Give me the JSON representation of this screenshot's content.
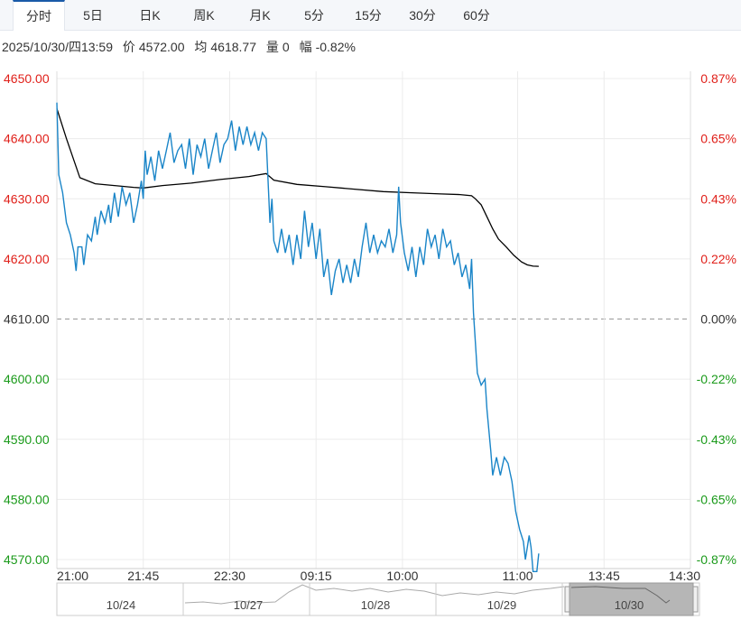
{
  "tabs": [
    {
      "label": "分时",
      "active": true
    },
    {
      "label": "5日",
      "active": false
    },
    {
      "label": "日K",
      "active": false
    },
    {
      "label": "周K",
      "active": false
    },
    {
      "label": "月K",
      "active": false
    },
    {
      "label": "5分",
      "active": false
    },
    {
      "label": "15分",
      "active": false
    },
    {
      "label": "30分",
      "active": false
    },
    {
      "label": "60分",
      "active": false
    }
  ],
  "info": {
    "datetime": "2025/10/30/四13:59",
    "price_label": "价",
    "price": "4572.00",
    "avg_label": "均",
    "avg": "4618.77",
    "volume_label": "量",
    "volume": "0",
    "change_label": "幅",
    "change": "-0.82%"
  },
  "colors": {
    "price_line": "#1a85c8",
    "avg_line": "#000000",
    "up": "#e0201a",
    "down": "#1a9a1a",
    "base": "#333333",
    "grid": "#ececec",
    "navigator_fill": "#dddddd"
  },
  "chart_data": {
    "type": "line",
    "ylim": [
      4569,
      4651
    ],
    "base_price": "4610.00",
    "y_ticks": [
      {
        "value": 4650,
        "label": "4650.00",
        "pct": "0.87%",
        "side": "up"
      },
      {
        "value": 4640,
        "label": "4640.00",
        "pct": "0.65%",
        "side": "up"
      },
      {
        "value": 4630,
        "label": "4630.00",
        "pct": "0.43%",
        "side": "up"
      },
      {
        "value": 4620,
        "label": "4620.00",
        "pct": "0.22%",
        "side": "up"
      },
      {
        "value": 4610,
        "label": "4610.00",
        "pct": "0.00%",
        "side": "base"
      },
      {
        "value": 4600,
        "label": "4600.00",
        "pct": "-0.22%",
        "side": "down"
      },
      {
        "value": 4590,
        "label": "4590.00",
        "pct": "-0.43%",
        "side": "down"
      },
      {
        "value": 4580,
        "label": "4580.00",
        "pct": "-0.65%",
        "side": "down"
      },
      {
        "value": 4570,
        "label": "4570.00",
        "pct": "-0.87%",
        "side": "down"
      }
    ],
    "x_ticks": [
      "21:00",
      "21:45",
      "22:30",
      "09:15",
      "10:00",
      "11:00",
      "13:45",
      "14:30"
    ],
    "x_tick_index": [
      0,
      45,
      90,
      135,
      180,
      240,
      285,
      330
    ],
    "total_points": 330,
    "price_series": {
      "name": "价",
      "points": [
        [
          0,
          4646
        ],
        [
          1,
          4634
        ],
        [
          3,
          4631
        ],
        [
          5,
          4626
        ],
        [
          7,
          4624
        ],
        [
          9,
          4621
        ],
        [
          10,
          4618
        ],
        [
          11,
          4622
        ],
        [
          13,
          4622
        ],
        [
          14,
          4619
        ],
        [
          16,
          4624
        ],
        [
          18,
          4623
        ],
        [
          20,
          4627
        ],
        [
          21,
          4624
        ],
        [
          23,
          4628
        ],
        [
          25,
          4626
        ],
        [
          27,
          4629
        ],
        [
          28,
          4626
        ],
        [
          30,
          4631
        ],
        [
          32,
          4627
        ],
        [
          34,
          4632
        ],
        [
          36,
          4629
        ],
        [
          38,
          4631
        ],
        [
          40,
          4626
        ],
        [
          42,
          4629
        ],
        [
          44,
          4633
        ],
        [
          45,
          4630
        ],
        [
          46,
          4638
        ],
        [
          47,
          4634
        ],
        [
          49,
          4637
        ],
        [
          51,
          4633
        ],
        [
          53,
          4638
        ],
        [
          55,
          4635
        ],
        [
          57,
          4638
        ],
        [
          59,
          4641
        ],
        [
          61,
          4636
        ],
        [
          63,
          4638
        ],
        [
          65,
          4639
        ],
        [
          67,
          4635
        ],
        [
          69,
          4640
        ],
        [
          71,
          4634
        ],
        [
          73,
          4639
        ],
        [
          75,
          4637
        ],
        [
          77,
          4640
        ],
        [
          79,
          4635
        ],
        [
          81,
          4638
        ],
        [
          83,
          4641
        ],
        [
          85,
          4636
        ],
        [
          87,
          4639
        ],
        [
          89,
          4640
        ],
        [
          91,
          4643
        ],
        [
          93,
          4638
        ],
        [
          95,
          4642
        ],
        [
          97,
          4639
        ],
        [
          99,
          4642
        ],
        [
          101,
          4639
        ],
        [
          103,
          4641
        ],
        [
          105,
          4638
        ],
        [
          107,
          4641
        ],
        [
          109,
          4640
        ],
        [
          111,
          4626
        ],
        [
          112,
          4630
        ],
        [
          113,
          4623
        ],
        [
          115,
          4621
        ],
        [
          117,
          4625
        ],
        [
          119,
          4621
        ],
        [
          121,
          4624
        ],
        [
          123,
          4619
        ],
        [
          125,
          4624
        ],
        [
          127,
          4620
        ],
        [
          129,
          4628
        ],
        [
          131,
          4622
        ],
        [
          133,
          4626
        ],
        [
          135,
          4620
        ],
        [
          137,
          4625
        ],
        [
          139,
          4617
        ],
        [
          141,
          4620
        ],
        [
          143,
          4614
        ],
        [
          145,
          4618
        ],
        [
          147,
          4620
        ],
        [
          149,
          4616
        ],
        [
          151,
          4619
        ],
        [
          153,
          4616
        ],
        [
          155,
          4620
        ],
        [
          157,
          4617
        ],
        [
          159,
          4622
        ],
        [
          161,
          4626
        ],
        [
          163,
          4621
        ],
        [
          165,
          4624
        ],
        [
          167,
          4621
        ],
        [
          169,
          4623
        ],
        [
          171,
          4622
        ],
        [
          173,
          4625
        ],
        [
          175,
          4621
        ],
        [
          177,
          4624
        ],
        [
          178,
          4632
        ],
        [
          179,
          4626
        ],
        [
          181,
          4621
        ],
        [
          183,
          4618
        ],
        [
          185,
          4622
        ],
        [
          187,
          4617
        ],
        [
          189,
          4622
        ],
        [
          191,
          4619
        ],
        [
          193,
          4625
        ],
        [
          195,
          4622
        ],
        [
          197,
          4624
        ],
        [
          199,
          4620
        ],
        [
          201,
          4625
        ],
        [
          203,
          4622
        ],
        [
          205,
          4623
        ],
        [
          207,
          4619
        ],
        [
          209,
          4621
        ],
        [
          211,
          4617
        ],
        [
          213,
          4619
        ],
        [
          215,
          4615
        ],
        [
          216,
          4620
        ],
        [
          217,
          4611
        ],
        [
          219,
          4601
        ],
        [
          221,
          4599
        ],
        [
          223,
          4600
        ],
        [
          224,
          4595
        ],
        [
          226,
          4588
        ],
        [
          227,
          4584
        ],
        [
          229,
          4587
        ],
        [
          231,
          4584
        ],
        [
          233,
          4587
        ],
        [
          235,
          4586
        ],
        [
          237,
          4583
        ],
        [
          239,
          4578
        ],
        [
          241,
          4575
        ],
        [
          243,
          4573
        ],
        [
          244,
          4570
        ],
        [
          246,
          4574
        ],
        [
          247,
          4572
        ],
        [
          248,
          4568
        ],
        [
          250,
          4568
        ],
        [
          251,
          4571
        ]
      ]
    },
    "avg_series": {
      "name": "均",
      "points": [
        [
          0,
          4645
        ],
        [
          5,
          4640
        ],
        [
          12,
          4633.5
        ],
        [
          20,
          4632.5
        ],
        [
          30,
          4632.2
        ],
        [
          40,
          4631.9
        ],
        [
          45,
          4631.8
        ],
        [
          55,
          4632.2
        ],
        [
          70,
          4632.6
        ],
        [
          85,
          4633.2
        ],
        [
          100,
          4633.7
        ],
        [
          109,
          4634.2
        ],
        [
          113,
          4633.1
        ],
        [
          125,
          4632.4
        ],
        [
          140,
          4632.0
        ],
        [
          155,
          4631.6
        ],
        [
          170,
          4631.2
        ],
        [
          185,
          4631.0
        ],
        [
          200,
          4630.8
        ],
        [
          210,
          4630.7
        ],
        [
          216,
          4630.5
        ],
        [
          218,
          4630.0
        ],
        [
          221,
          4629.0
        ],
        [
          224,
          4627.0
        ],
        [
          227,
          4625.0
        ],
        [
          230,
          4623.3
        ],
        [
          234,
          4622.0
        ],
        [
          238,
          4620.6
        ],
        [
          242,
          4619.5
        ],
        [
          245,
          4619.0
        ],
        [
          248,
          4618.8
        ],
        [
          251,
          4618.77
        ]
      ]
    },
    "navigator": {
      "labels": [
        "10/24",
        "10/27",
        "10/28",
        "10/29",
        "10/30"
      ],
      "selected": "10/30"
    }
  }
}
